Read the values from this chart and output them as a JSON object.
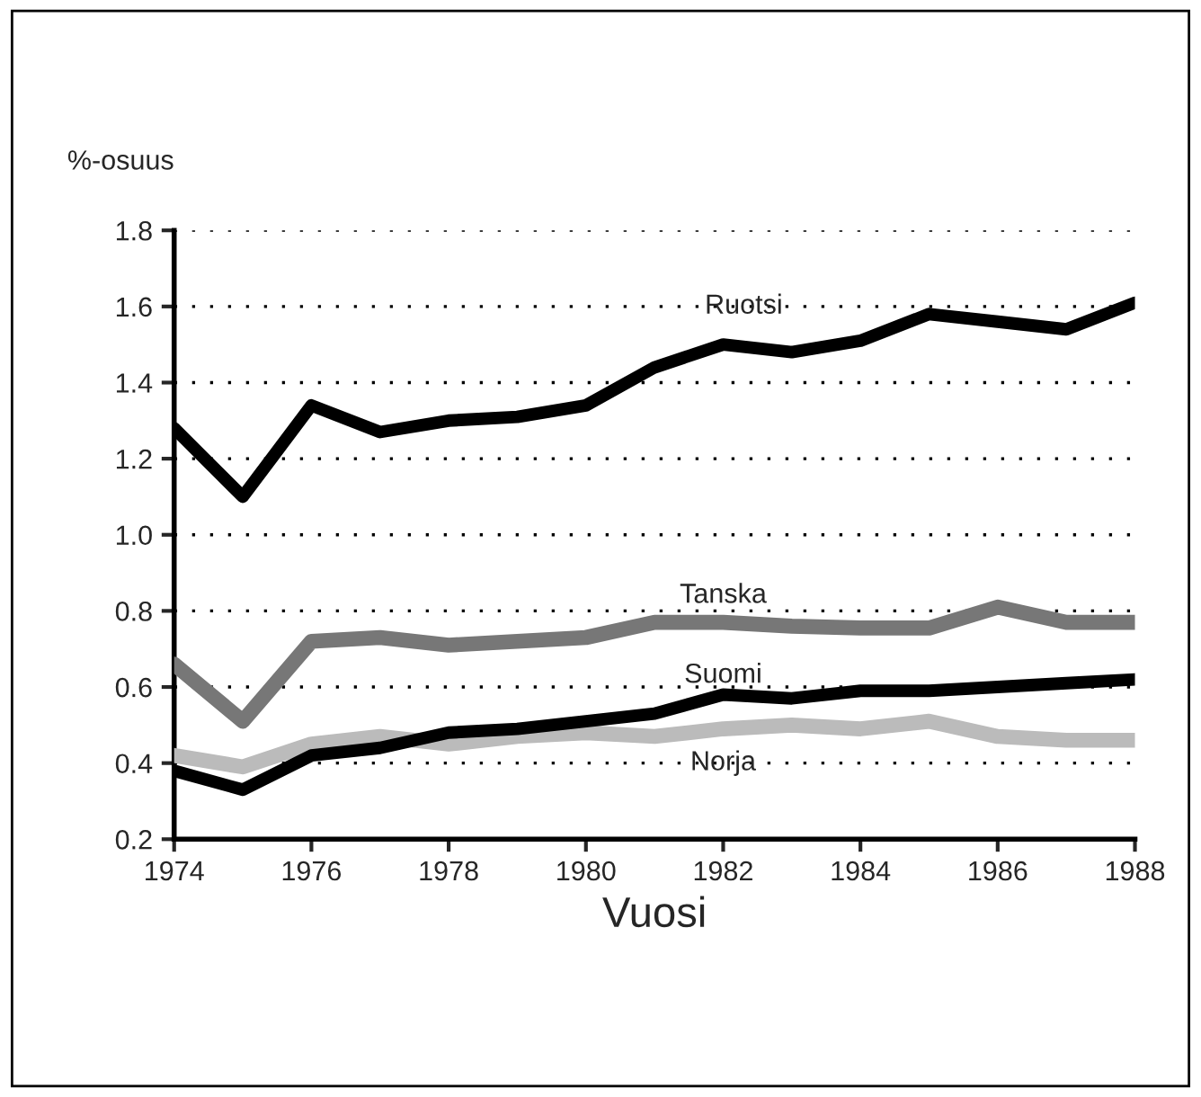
{
  "chart_data": {
    "type": "line",
    "ylabel": "%-osuus",
    "xlabel": "Vuosi",
    "x": [
      1974,
      1975,
      1976,
      1977,
      1978,
      1979,
      1980,
      1981,
      1982,
      1983,
      1984,
      1985,
      1986,
      1987,
      1988
    ],
    "series": [
      {
        "name": "Ruotsi",
        "color": "#000000",
        "values": [
          1.28,
          1.1,
          1.34,
          1.27,
          1.3,
          1.31,
          1.34,
          1.44,
          1.5,
          1.48,
          1.51,
          1.58,
          1.56,
          1.54,
          1.61
        ]
      },
      {
        "name": "Tanska",
        "color": "#777777",
        "values": [
          0.66,
          0.51,
          0.72,
          0.73,
          0.71,
          0.72,
          0.73,
          0.77,
          0.77,
          0.76,
          0.755,
          0.755,
          0.81,
          0.77,
          0.77
        ]
      },
      {
        "name": "Suomi",
        "color": "#000000",
        "values": [
          0.38,
          0.33,
          0.42,
          0.44,
          0.48,
          0.49,
          0.51,
          0.53,
          0.58,
          0.57,
          0.59,
          0.59,
          0.6,
          0.61,
          0.62
        ]
      },
      {
        "name": "Norja",
        "color": "#bbbbbb",
        "values": [
          0.42,
          0.39,
          0.45,
          0.47,
          0.45,
          0.47,
          0.48,
          0.47,
          0.49,
          0.5,
          0.49,
          0.51,
          0.47,
          0.46,
          0.46
        ]
      }
    ],
    "xlim": [
      1974,
      1988
    ],
    "xticks": [
      1974,
      1976,
      1978,
      1980,
      1982,
      1984,
      1986,
      1988
    ],
    "ylim": [
      0.2,
      1.8
    ],
    "yticks": [
      0.2,
      0.4,
      0.6,
      0.8,
      {
        "value": 1,
        "label": "1.0"
      },
      1.2,
      1.4,
      1.6,
      1.8
    ],
    "grid": "y",
    "legend": false,
    "line_style": "solid",
    "marker": "none"
  }
}
